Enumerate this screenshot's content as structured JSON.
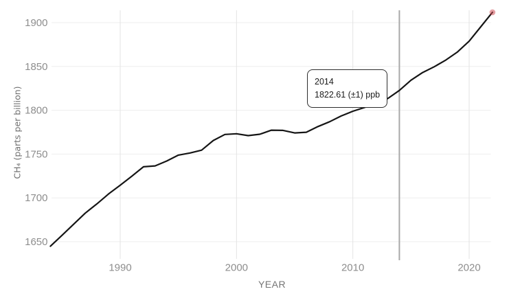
{
  "page": {
    "background": "#ffffff"
  },
  "chart_data": {
    "type": "line",
    "title": "",
    "xlabel": "YEAR",
    "ylabel": "CH₄ (parts per billion)",
    "x": [
      1984,
      1985,
      1986,
      1987,
      1988,
      1989,
      1990,
      1991,
      1992,
      1993,
      1994,
      1995,
      1996,
      1997,
      1998,
      1999,
      2000,
      2001,
      2002,
      2003,
      2004,
      2005,
      2006,
      2007,
      2008,
      2009,
      2010,
      2011,
      2012,
      2013,
      2014,
      2015,
      2016,
      2017,
      2018,
      2019,
      2020,
      2021,
      2022
    ],
    "series": [
      {
        "name": "CH₄ (parts per billion)",
        "values": [
          1644.85,
          1657.29,
          1670.09,
          1682.7,
          1693.21,
          1704.53,
          1714.42,
          1724.78,
          1735.48,
          1736.52,
          1742.1,
          1748.86,
          1751.28,
          1754.48,
          1765.52,
          1772.43,
          1773.22,
          1771.1,
          1772.67,
          1777.27,
          1777.03,
          1774.16,
          1774.96,
          1781.42,
          1786.95,
          1793.52,
          1798.93,
          1803.12,
          1808.13,
          1813.43,
          1822.61,
          1834.29,
          1843.12,
          1849.67,
          1857.33,
          1866.58,
          1878.93,
          1895.32,
          1911.85
        ]
      }
    ],
    "x_ticks": [
      1990,
      2000,
      2010,
      2020
    ],
    "y_ticks": [
      1650,
      1700,
      1750,
      1800,
      1850,
      1900
    ],
    "xlim": [
      1984,
      2022.1
    ],
    "ylim": [
      1630,
      1914
    ],
    "grid": true,
    "legend": "none",
    "colors": {
      "line": "#151515",
      "grid_horizontal": "#ededed",
      "grid_vertical": "#e3e3e3",
      "tick_label": "#8d8d8d",
      "axis_title": "#6f6f6f",
      "hover_marker_line": "#a8a8a8",
      "endpoint_dot": "#cf5058",
      "tooltip_border": "#2b2b2b",
      "tooltip_background": "#ffffff"
    },
    "hover_marker": {
      "year": 2014
    },
    "endpoint_dot": {
      "year": 2022,
      "value": 1911.85
    },
    "tooltip": {
      "line1": "2014",
      "line2": "1822.61 (±1) ppb"
    }
  }
}
